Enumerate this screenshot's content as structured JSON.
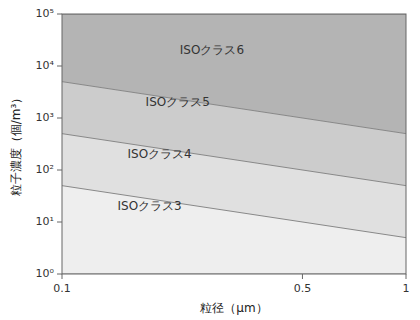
{
  "chart_data": {
    "type": "area",
    "xlabel": "粒径（μm）",
    "ylabel": "粒子濃度（個/m³）",
    "x": [
      0.1,
      1.0
    ],
    "series": [
      {
        "values": [
          1.0,
          1.0
        ],
        "color": "#eeeeee"
      },
      {
        "values": [
          50,
          5
        ],
        "color": "#e0e0e0"
      },
      {
        "values": [
          500,
          50
        ],
        "color": "#cccccc"
      },
      {
        "values": [
          5000,
          500
        ],
        "color": "#b4b4b4"
      },
      {
        "values": [
          100000,
          100000
        ]
      }
    ],
    "annotations": [
      {
        "text": "ISOクラス3",
        "x": 0.145,
        "y": 20
      },
      {
        "text": "ISOクラス4",
        "x": 0.155,
        "y": 200
      },
      {
        "text": "ISOクラス5",
        "x": 0.175,
        "y": 2000
      },
      {
        "text": "ISOクラス6",
        "x": 0.22,
        "y": 20000
      }
    ],
    "xlim": [
      0.1,
      1.0
    ],
    "ylim": [
      1,
      100000
    ],
    "xticks": [
      0.1,
      0.5,
      1
    ],
    "yticks": [
      {
        "value": 1,
        "label": "10⁰"
      },
      {
        "value": 10,
        "label": "10¹"
      },
      {
        "value": 100,
        "label": "10²"
      },
      {
        "value": 1000,
        "label": "10³"
      },
      {
        "value": 10000,
        "label": "10⁴"
      },
      {
        "value": 100000,
        "label": "10⁵"
      }
    ],
    "log": true,
    "grid": false
  }
}
